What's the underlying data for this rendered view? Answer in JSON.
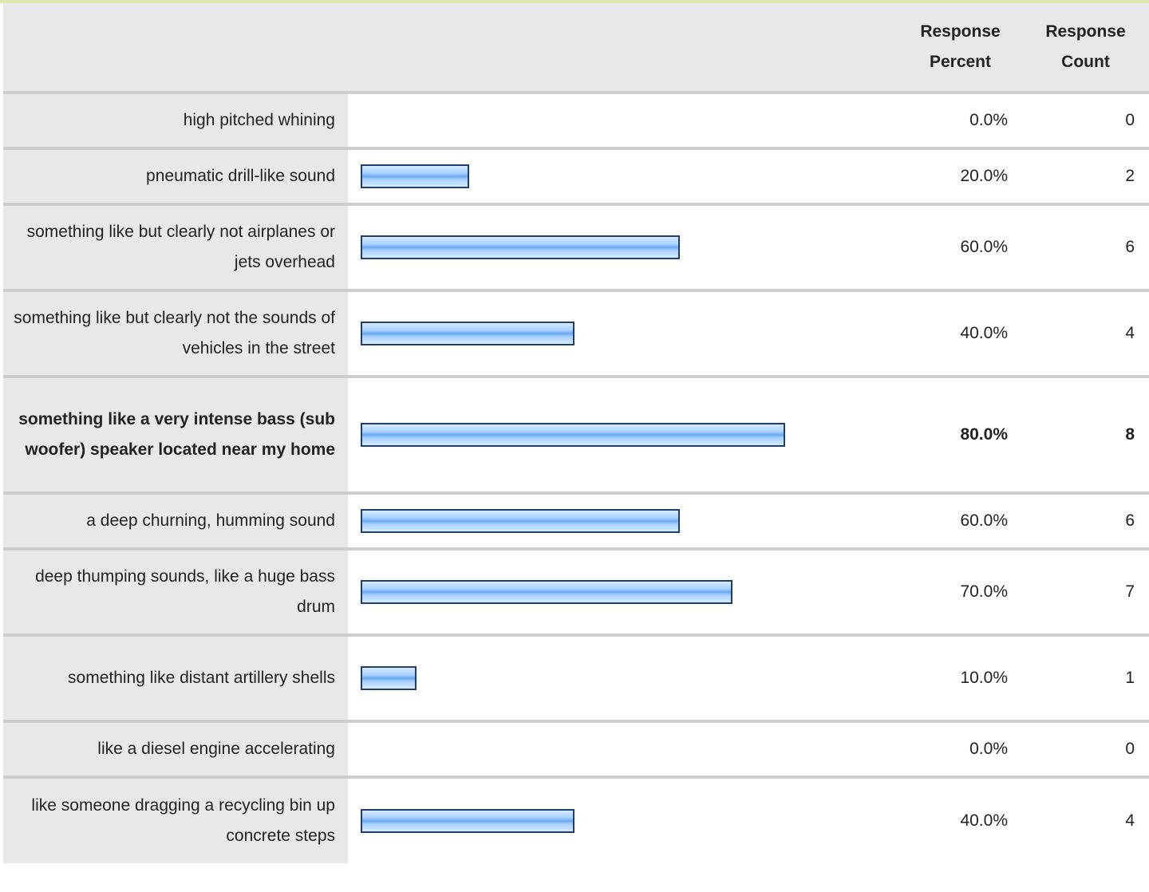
{
  "header": {
    "percent_label_line1": "Response",
    "percent_label_line2": "Percent",
    "count_label_line1": "Response",
    "count_label_line2": "Count"
  },
  "colors": {
    "bar_fill": "#6aa9f2",
    "bar_border": "#1f3d6d",
    "label_bg": "#e8e8e8",
    "row_divider": "#cdcdcd",
    "top_rule": "#d9e8b0"
  },
  "chart_data": {
    "type": "bar",
    "orientation": "horizontal",
    "xlim": [
      0,
      100
    ],
    "categories": [
      "high pitched whining",
      "pneumatic drill-like sound",
      "something like but clearly not airplanes or jets overhead",
      "something like but clearly not the sounds of vehicles in the street",
      "something like a very intense bass (sub woofer) speaker located near my home",
      "a deep churning, humming sound",
      "deep thumping sounds, like a huge bass drum",
      "something like distant artillery shells",
      "like a diesel engine accelerating",
      "like someone dragging a recycling bin up concrete steps"
    ],
    "values": [
      0,
      20,
      60,
      40,
      80,
      60,
      70,
      10,
      0,
      40
    ],
    "percent_labels": [
      "0.0%",
      "20.0%",
      "60.0%",
      "40.0%",
      "80.0%",
      "60.0%",
      "70.0%",
      "10.0%",
      "0.0%",
      "40.0%"
    ],
    "counts": [
      "0",
      "2",
      "6",
      "4",
      "8",
      "6",
      "7",
      "1",
      "0",
      "4"
    ],
    "highlighted_index": 4
  }
}
